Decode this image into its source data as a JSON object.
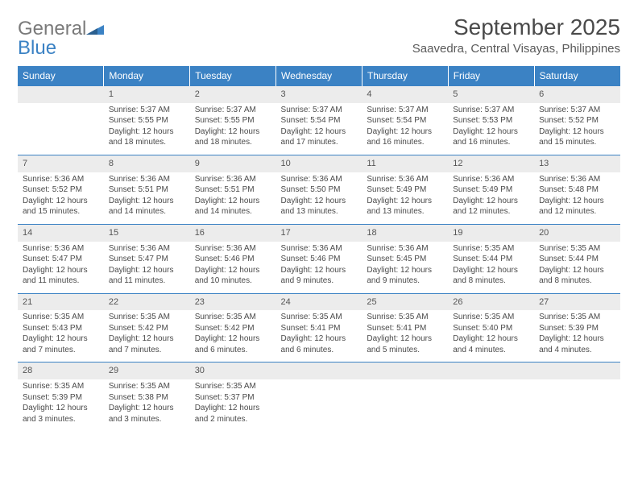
{
  "logo": {
    "text1": "General",
    "text2": "Blue"
  },
  "title": "September 2025",
  "location": "Saavedra, Central Visayas, Philippines",
  "colors": {
    "header_bg": "#3b82c4",
    "header_text": "#ffffff",
    "daynum_bg": "#ececec",
    "text": "#4a4a4a",
    "border": "#3b82c4"
  },
  "weekdays": [
    "Sunday",
    "Monday",
    "Tuesday",
    "Wednesday",
    "Thursday",
    "Friday",
    "Saturday"
  ],
  "weeks": [
    [
      null,
      {
        "n": "1",
        "sr": "Sunrise: 5:37 AM",
        "ss": "Sunset: 5:55 PM",
        "dl": "Daylight: 12 hours and 18 minutes."
      },
      {
        "n": "2",
        "sr": "Sunrise: 5:37 AM",
        "ss": "Sunset: 5:55 PM",
        "dl": "Daylight: 12 hours and 18 minutes."
      },
      {
        "n": "3",
        "sr": "Sunrise: 5:37 AM",
        "ss": "Sunset: 5:54 PM",
        "dl": "Daylight: 12 hours and 17 minutes."
      },
      {
        "n": "4",
        "sr": "Sunrise: 5:37 AM",
        "ss": "Sunset: 5:54 PM",
        "dl": "Daylight: 12 hours and 16 minutes."
      },
      {
        "n": "5",
        "sr": "Sunrise: 5:37 AM",
        "ss": "Sunset: 5:53 PM",
        "dl": "Daylight: 12 hours and 16 minutes."
      },
      {
        "n": "6",
        "sr": "Sunrise: 5:37 AM",
        "ss": "Sunset: 5:52 PM",
        "dl": "Daylight: 12 hours and 15 minutes."
      }
    ],
    [
      {
        "n": "7",
        "sr": "Sunrise: 5:36 AM",
        "ss": "Sunset: 5:52 PM",
        "dl": "Daylight: 12 hours and 15 minutes."
      },
      {
        "n": "8",
        "sr": "Sunrise: 5:36 AM",
        "ss": "Sunset: 5:51 PM",
        "dl": "Daylight: 12 hours and 14 minutes."
      },
      {
        "n": "9",
        "sr": "Sunrise: 5:36 AM",
        "ss": "Sunset: 5:51 PM",
        "dl": "Daylight: 12 hours and 14 minutes."
      },
      {
        "n": "10",
        "sr": "Sunrise: 5:36 AM",
        "ss": "Sunset: 5:50 PM",
        "dl": "Daylight: 12 hours and 13 minutes."
      },
      {
        "n": "11",
        "sr": "Sunrise: 5:36 AM",
        "ss": "Sunset: 5:49 PM",
        "dl": "Daylight: 12 hours and 13 minutes."
      },
      {
        "n": "12",
        "sr": "Sunrise: 5:36 AM",
        "ss": "Sunset: 5:49 PM",
        "dl": "Daylight: 12 hours and 12 minutes."
      },
      {
        "n": "13",
        "sr": "Sunrise: 5:36 AM",
        "ss": "Sunset: 5:48 PM",
        "dl": "Daylight: 12 hours and 12 minutes."
      }
    ],
    [
      {
        "n": "14",
        "sr": "Sunrise: 5:36 AM",
        "ss": "Sunset: 5:47 PM",
        "dl": "Daylight: 12 hours and 11 minutes."
      },
      {
        "n": "15",
        "sr": "Sunrise: 5:36 AM",
        "ss": "Sunset: 5:47 PM",
        "dl": "Daylight: 12 hours and 11 minutes."
      },
      {
        "n": "16",
        "sr": "Sunrise: 5:36 AM",
        "ss": "Sunset: 5:46 PM",
        "dl": "Daylight: 12 hours and 10 minutes."
      },
      {
        "n": "17",
        "sr": "Sunrise: 5:36 AM",
        "ss": "Sunset: 5:46 PM",
        "dl": "Daylight: 12 hours and 9 minutes."
      },
      {
        "n": "18",
        "sr": "Sunrise: 5:36 AM",
        "ss": "Sunset: 5:45 PM",
        "dl": "Daylight: 12 hours and 9 minutes."
      },
      {
        "n": "19",
        "sr": "Sunrise: 5:35 AM",
        "ss": "Sunset: 5:44 PM",
        "dl": "Daylight: 12 hours and 8 minutes."
      },
      {
        "n": "20",
        "sr": "Sunrise: 5:35 AM",
        "ss": "Sunset: 5:44 PM",
        "dl": "Daylight: 12 hours and 8 minutes."
      }
    ],
    [
      {
        "n": "21",
        "sr": "Sunrise: 5:35 AM",
        "ss": "Sunset: 5:43 PM",
        "dl": "Daylight: 12 hours and 7 minutes."
      },
      {
        "n": "22",
        "sr": "Sunrise: 5:35 AM",
        "ss": "Sunset: 5:42 PM",
        "dl": "Daylight: 12 hours and 7 minutes."
      },
      {
        "n": "23",
        "sr": "Sunrise: 5:35 AM",
        "ss": "Sunset: 5:42 PM",
        "dl": "Daylight: 12 hours and 6 minutes."
      },
      {
        "n": "24",
        "sr": "Sunrise: 5:35 AM",
        "ss": "Sunset: 5:41 PM",
        "dl": "Daylight: 12 hours and 6 minutes."
      },
      {
        "n": "25",
        "sr": "Sunrise: 5:35 AM",
        "ss": "Sunset: 5:41 PM",
        "dl": "Daylight: 12 hours and 5 minutes."
      },
      {
        "n": "26",
        "sr": "Sunrise: 5:35 AM",
        "ss": "Sunset: 5:40 PM",
        "dl": "Daylight: 12 hours and 4 minutes."
      },
      {
        "n": "27",
        "sr": "Sunrise: 5:35 AM",
        "ss": "Sunset: 5:39 PM",
        "dl": "Daylight: 12 hours and 4 minutes."
      }
    ],
    [
      {
        "n": "28",
        "sr": "Sunrise: 5:35 AM",
        "ss": "Sunset: 5:39 PM",
        "dl": "Daylight: 12 hours and 3 minutes."
      },
      {
        "n": "29",
        "sr": "Sunrise: 5:35 AM",
        "ss": "Sunset: 5:38 PM",
        "dl": "Daylight: 12 hours and 3 minutes."
      },
      {
        "n": "30",
        "sr": "Sunrise: 5:35 AM",
        "ss": "Sunset: 5:37 PM",
        "dl": "Daylight: 12 hours and 2 minutes."
      },
      null,
      null,
      null,
      null
    ]
  ]
}
